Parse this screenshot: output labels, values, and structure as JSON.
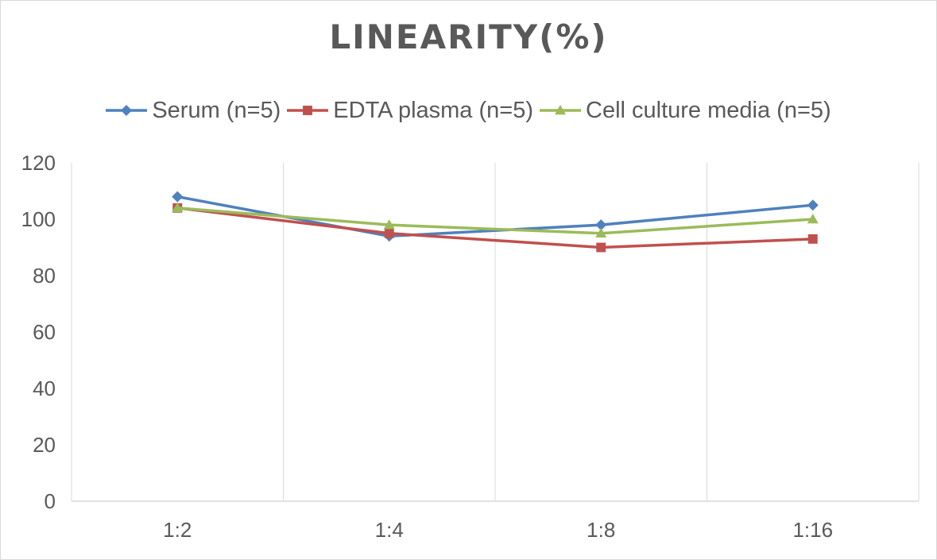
{
  "chart_data": {
    "type": "line",
    "title": "LINEARITY(%)",
    "categories": [
      "1:2",
      "1:4",
      "1:8",
      "1:16"
    ],
    "ylim": [
      0,
      120
    ],
    "yticks": [
      0,
      20,
      40,
      60,
      80,
      100,
      120
    ],
    "grid": "vertical",
    "legend_position": "top",
    "series": [
      {
        "name": "Serum (n=5)",
        "values": [
          108,
          94,
          98,
          105
        ],
        "color": "#4f81bd",
        "marker": "diamond"
      },
      {
        "name": "EDTA plasma (n=5)",
        "values": [
          104,
          95,
          90,
          93
        ],
        "color": "#c0504d",
        "marker": "square"
      },
      {
        "name": "Cell culture media (n=5)",
        "values": [
          104,
          98,
          95,
          100
        ],
        "color": "#9bbb59",
        "marker": "triangle"
      }
    ]
  }
}
